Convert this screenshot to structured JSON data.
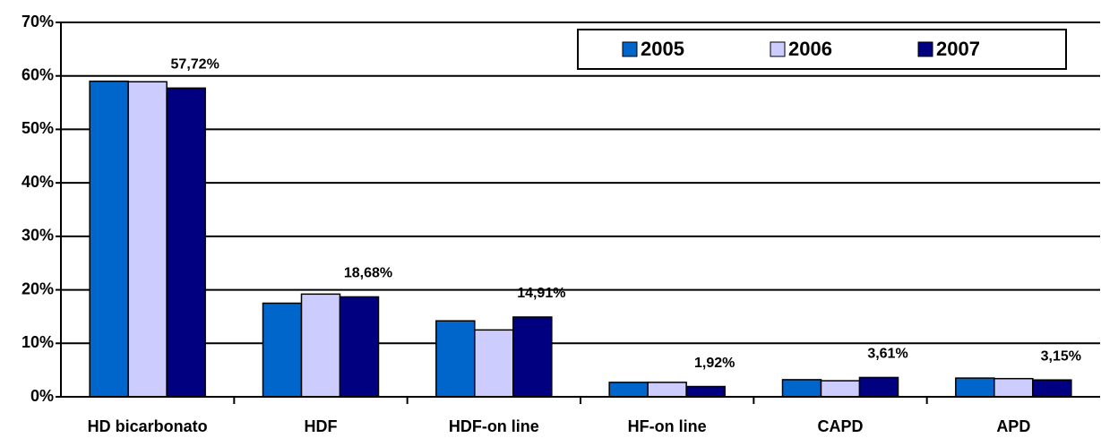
{
  "chart_data": {
    "type": "bar",
    "categories": [
      "HD bicarbonato",
      "HDF",
      "HDF-on line",
      "HF-on line",
      "CAPD",
      "APD"
    ],
    "series": [
      {
        "name": "2005",
        "color": "#0066cc",
        "values": [
          59.0,
          17.5,
          14.2,
          2.7,
          3.2,
          3.5
        ]
      },
      {
        "name": "2006",
        "color": "#ccccff",
        "values": [
          58.9,
          19.2,
          12.5,
          2.7,
          3.0,
          3.4
        ]
      },
      {
        "name": "2007",
        "color": "#000080",
        "values": [
          57.72,
          18.68,
          14.91,
          1.92,
          3.61,
          3.15
        ],
        "value_labels": [
          "57,72%",
          "18,68%",
          "14,91%",
          "1,92%",
          "3,61%",
          "3,15%"
        ]
      }
    ],
    "ylim": [
      0,
      70
    ],
    "yticks": [
      {
        "value": 0,
        "label": "0%"
      },
      {
        "value": 10,
        "label": "10%"
      },
      {
        "value": 20,
        "label": "20%"
      },
      {
        "value": 30,
        "label": "30%"
      },
      {
        "value": 40,
        "label": "40%"
      },
      {
        "value": 50,
        "label": "50%"
      },
      {
        "value": 60,
        "label": "60%"
      },
      {
        "value": 70,
        "label": "70%"
      }
    ],
    "grid": true,
    "legend": "top-right"
  }
}
